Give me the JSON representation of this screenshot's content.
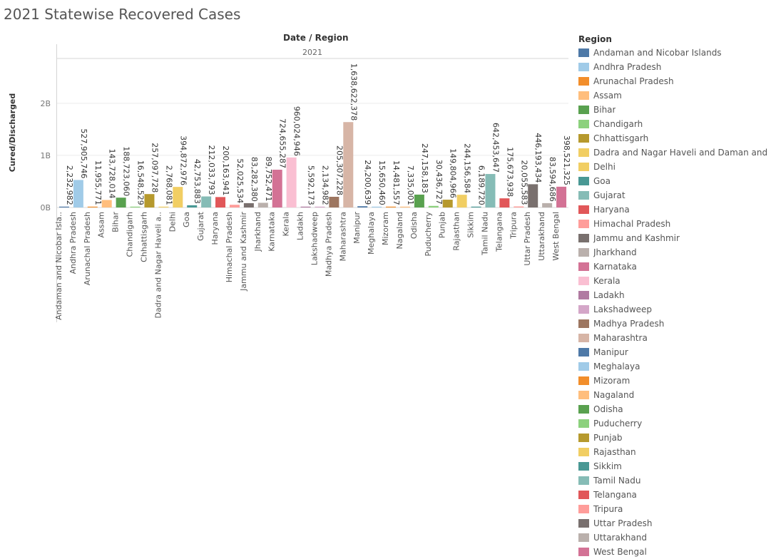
{
  "chart_data": {
    "type": "bar",
    "title": "2021 Statewise Recovered Cases",
    "column_header": "Date / Region",
    "pane_label": "2021",
    "ylabel": "Cured/Discharged",
    "ylim": [
      0,
      2750000000
    ],
    "yticks": [
      {
        "value": 0,
        "label": "0B"
      },
      {
        "value": 1000000000,
        "label": "1B"
      },
      {
        "value": 2000000000,
        "label": "2B"
      }
    ],
    "grid": true,
    "legend_title": "Region",
    "legend_position": "right",
    "categories": [
      "Andaman and Nicobar Isla..",
      "Andhra Pradesh",
      "Arunachal Pradesh",
      "Assam",
      "Bihar",
      "Chandigarh",
      "Chhattisgarh",
      "Dadra and Nagar Haveli a..",
      "Delhi",
      "Goa",
      "Gujarat",
      "Haryana",
      "Himachal Pradesh",
      "Jammu and Kashmir",
      "Jharkhand",
      "Karnataka",
      "Kerala",
      "Ladakh",
      "Lakshadweep",
      "Madhya Pradesh",
      "Maharashtra",
      "Manipur",
      "Meghalaya",
      "Mizoram",
      "Nagaland",
      "Odisha",
      "Puducherry",
      "Punjab",
      "Rajasthan",
      "Sikkim",
      "Tamil Nadu",
      "Telangana",
      "Tripura",
      "Uttar Pradesh",
      "Uttarakhand",
      "West Bengal"
    ],
    "legend_labels": [
      "Andaman and Nicobar Islands",
      "Andhra Pradesh",
      "Arunachal Pradesh",
      "Assam",
      "Bihar",
      "Chandigarh",
      "Chhattisgarh",
      "Dadra and Nagar Haveli and Daman and Diu",
      "Delhi",
      "Goa",
      "Gujarat",
      "Haryana",
      "Himachal Pradesh",
      "Jammu and Kashmir",
      "Jharkhand",
      "Karnataka",
      "Kerala",
      "Ladakh",
      "Lakshadweep",
      "Madhya Pradesh",
      "Maharashtra",
      "Manipur",
      "Meghalaya",
      "Mizoram",
      "Nagaland",
      "Odisha",
      "Puducherry",
      "Punjab",
      "Rajasthan",
      "Sikkim",
      "Tamil Nadu",
      "Telangana",
      "Tripura",
      "Uttar Pradesh",
      "Uttarakhand",
      "West Bengal"
    ],
    "values": [
      2232982,
      527905746,
      11955771,
      143728014,
      188723060,
      16548529,
      257097728,
      2768081,
      394872976,
      42753883,
      212033793,
      200163941,
      52025534,
      83282380,
      89752471,
      724655287,
      960024946,
      5592173,
      2134982,
      205307228,
      1638622378,
      24200639,
      15650460,
      14481557,
      7335001,
      247158183,
      30436727,
      149804966,
      244156584,
      6189720,
      642453647,
      175673938,
      20055583,
      446193434,
      83594686,
      398521325
    ],
    "value_labels": [
      "2,232,982",
      "527,905,746",
      "11,955,771",
      "143,728,014",
      "188,723,060",
      "16,548,529",
      "257,097,728",
      "2,768,081",
      "394,872,976",
      "42,753,883",
      "212,033,793",
      "200,163,941",
      "52,025,534",
      "83,282,380",
      "89,752,471",
      "724,655,287",
      "960,024,946",
      "5,592,173",
      "2,134,982",
      "205,307,228",
      "1,638,622,378",
      "24,200,639",
      "15,650,460",
      "14,481,557",
      "7,335,001",
      "247,158,183",
      "30,436,727",
      "149,804,966",
      "244,156,584",
      "6,189,720",
      "642,453,647",
      "175,673,938",
      "20,055,583",
      "446,193,434",
      "83,594,686",
      "398,521,325"
    ],
    "colors": [
      "#4e79a7",
      "#a0cbe8",
      "#f28e2b",
      "#ffbe7d",
      "#59a14f",
      "#8cd17d",
      "#b6992d",
      "#f1ce63",
      "#f1ce63",
      "#499894",
      "#86bcb6",
      "#e15759",
      "#ff9d9a",
      "#79706e",
      "#bab0ac",
      "#d37295",
      "#fabfd2",
      "#b07aa1",
      "#d4a6c8",
      "#9d7660",
      "#d7b5a6",
      "#4e79a7",
      "#a0cbe8",
      "#f28e2b",
      "#ffbe7d",
      "#59a14f",
      "#8cd17d",
      "#b6992d",
      "#f1ce63",
      "#499894",
      "#86bcb6",
      "#e15759",
      "#ff9d9a",
      "#79706e",
      "#bab0ac",
      "#d37295"
    ]
  }
}
